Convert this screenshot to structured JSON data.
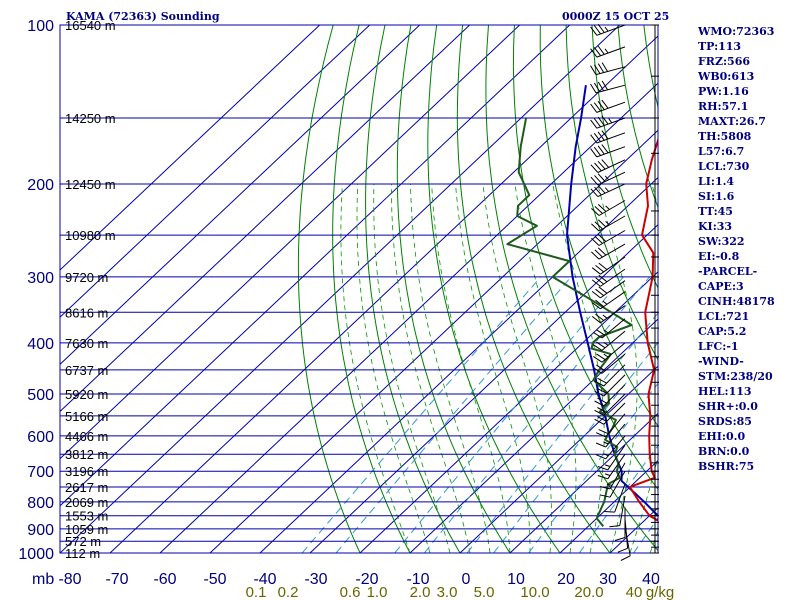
{
  "chart_data": {
    "type": "skew-t sounding",
    "title": "KAMA (72363) Sounding",
    "datetime": "0000Z 15 OCT 25",
    "pressure_unit": "mb",
    "mixing_ratio_unit": "g/kg",
    "pressure_ticks": [
      100,
      200,
      300,
      400,
      500,
      600,
      700,
      800,
      900,
      1000
    ],
    "temperature_ticks": [
      -80,
      -70,
      -60,
      -50,
      -40,
      -30,
      -20,
      -10,
      0,
      10,
      20,
      30,
      40
    ],
    "temperature_tick_labels": [
      "-80",
      "-70",
      "-60",
      "-50",
      "-40",
      "-30",
      "-20",
      "-10",
      "0",
      "10",
      "20",
      "30",
      "40"
    ],
    "mixing_ratio_labels": [
      "0.1",
      "0.2",
      "0.6",
      "1.0",
      "2.0",
      "3.0",
      "5.0",
      "10.0",
      "20.0",
      "40"
    ],
    "mixing_ratio_values": [
      0.1,
      0.2,
      0.6,
      1.0,
      2.0,
      3.0,
      5.0,
      10.0,
      20.0,
      40.0
    ],
    "height_labels": [
      {
        "p": 100,
        "label": "16540 m"
      },
      {
        "p": 150,
        "label": "14250 m"
      },
      {
        "p": 200,
        "label": "12450 m"
      },
      {
        "p": 250,
        "label": "10980 m"
      },
      {
        "p": 300,
        "label": "9720 m"
      },
      {
        "p": 350,
        "label": "8616 m"
      },
      {
        "p": 400,
        "label": "7630 m"
      },
      {
        "p": 450,
        "label": "6737 m"
      },
      {
        "p": 500,
        "label": "5920 m"
      },
      {
        "p": 550,
        "label": "5166 m"
      },
      {
        "p": 600,
        "label": "4466 m"
      },
      {
        "p": 650,
        "label": "3812 m"
      },
      {
        "p": 700,
        "label": "3196 m"
      },
      {
        "p": 750,
        "label": "2617 m"
      },
      {
        "p": 800,
        "label": "2069 m"
      },
      {
        "p": 850,
        "label": "1553 m"
      },
      {
        "p": 900,
        "label": "1059 m"
      },
      {
        "p": 950,
        "label": "572 m"
      },
      {
        "p": 1000,
        "label": "112 m"
      }
    ],
    "temperature_profile": [
      [
        890,
        26
      ],
      [
        850,
        20
      ],
      [
        800,
        15
      ],
      [
        750,
        10
      ],
      [
        720,
        13
      ],
      [
        700,
        11
      ],
      [
        650,
        7
      ],
      [
        600,
        3
      ],
      [
        550,
        -1
      ],
      [
        500,
        -6
      ],
      [
        450,
        -10
      ],
      [
        400,
        -17
      ],
      [
        350,
        -24
      ],
      [
        300,
        -30
      ],
      [
        270,
        -35
      ],
      [
        250,
        -41
      ],
      [
        220,
        -46
      ],
      [
        200,
        -51
      ],
      [
        180,
        -55
      ],
      [
        160,
        -59
      ],
      [
        150,
        -61
      ],
      [
        130,
        -65
      ],
      [
        120,
        -68
      ],
      [
        110,
        -71
      ],
      [
        102,
        -74
      ]
    ],
    "dewpoint_profile": [
      [
        890,
        13
      ],
      [
        860,
        10
      ],
      [
        830,
        9
      ],
      [
        800,
        8
      ],
      [
        760,
        6
      ],
      [
        740,
        5
      ],
      [
        720,
        6
      ],
      [
        700,
        4
      ],
      [
        680,
        3
      ],
      [
        650,
        0
      ],
      [
        630,
        -1
      ],
      [
        610,
        -5
      ],
      [
        580,
        -6
      ],
      [
        560,
        -7
      ],
      [
        540,
        -12
      ],
      [
        520,
        -12
      ],
      [
        500,
        -14
      ],
      [
        470,
        -20
      ],
      [
        450,
        -21
      ],
      [
        420,
        -22
      ],
      [
        410,
        -27
      ],
      [
        400,
        -28
      ],
      [
        390,
        -28
      ],
      [
        370,
        -24
      ],
      [
        330,
        -38
      ],
      [
        300,
        -50
      ],
      [
        280,
        -50
      ],
      [
        260,
        -66
      ],
      [
        240,
        -64
      ],
      [
        230,
        -70
      ],
      [
        220,
        -72
      ],
      [
        210,
        -72
      ],
      [
        190,
        -79
      ],
      [
        170,
        -84
      ],
      [
        150,
        -89
      ]
    ],
    "parcel_profile": [
      [
        890,
        26
      ],
      [
        800,
        16
      ],
      [
        730,
        7
      ],
      [
        700,
        5
      ],
      [
        650,
        0
      ],
      [
        600,
        -5
      ],
      [
        550,
        -10
      ],
      [
        500,
        -16
      ],
      [
        450,
        -22
      ],
      [
        400,
        -29
      ],
      [
        350,
        -37
      ],
      [
        300,
        -46
      ],
      [
        250,
        -56
      ],
      [
        200,
        -66
      ],
      [
        170,
        -73
      ],
      [
        150,
        -78
      ],
      [
        130,
        -84
      ]
    ],
    "indices": [
      "WMO:72363",
      "TP:113",
      "FRZ:566",
      "WB0:613",
      "PW:1.16",
      "RH:57.1",
      "MAXT:26.7",
      "TH:5808",
      "L57:6.7",
      "LCL:730",
      "LI:1.4",
      "SI:1.6",
      "TT:45",
      "KI:33",
      "SW:322",
      "EI:-0.8",
      "-PARCEL-",
      "CAPE:3",
      "CINH:48178",
      "LCL:721",
      "CAP:5.2",
      "LFC:-1",
      "-WIND-",
      "STM:238/20",
      "HEL:113",
      "SHR+:0.0",
      "SRDS:85",
      "EHI:0.0",
      "BRN:0.0",
      "BSHR:75"
    ],
    "wind_profile": [
      [
        100,
        250,
        35
      ],
      [
        110,
        250,
        35
      ],
      [
        120,
        255,
        40
      ],
      [
        130,
        255,
        40
      ],
      [
        140,
        250,
        40
      ],
      [
        150,
        250,
        45
      ],
      [
        160,
        250,
        40
      ],
      [
        170,
        250,
        40
      ],
      [
        180,
        245,
        40
      ],
      [
        190,
        245,
        35
      ],
      [
        200,
        245,
        35
      ],
      [
        215,
        240,
        35
      ],
      [
        230,
        240,
        35
      ],
      [
        245,
        240,
        30
      ],
      [
        260,
        240,
        30
      ],
      [
        275,
        235,
        30
      ],
      [
        290,
        235,
        30
      ],
      [
        305,
        235,
        30
      ],
      [
        320,
        235,
        25
      ],
      [
        340,
        235,
        25
      ],
      [
        360,
        230,
        25
      ],
      [
        380,
        230,
        25
      ],
      [
        400,
        230,
        25
      ],
      [
        420,
        230,
        20
      ],
      [
        440,
        225,
        20
      ],
      [
        460,
        225,
        20
      ],
      [
        480,
        225,
        20
      ],
      [
        500,
        225,
        20
      ],
      [
        520,
        225,
        20
      ],
      [
        545,
        220,
        20
      ],
      [
        570,
        220,
        15
      ],
      [
        600,
        220,
        15
      ],
      [
        625,
        215,
        15
      ],
      [
        650,
        215,
        15
      ],
      [
        675,
        210,
        15
      ],
      [
        700,
        210,
        10
      ],
      [
        740,
        200,
        10
      ],
      [
        780,
        190,
        10
      ],
      [
        820,
        180,
        10
      ],
      [
        860,
        175,
        10
      ],
      [
        890,
        170,
        10
      ]
    ],
    "colors": {
      "temperature": "#cc0000",
      "dewpoint": "#1e5a1e",
      "parcel": "#0000aa",
      "isobar": "#0000aa",
      "isotherm": "#0000aa",
      "dry_adiabat": "#008000",
      "moist_adiabat": "#009900",
      "mixing_ratio": "#3399cc",
      "axis_label": "#000080",
      "mixing_ratio_label": "#666600",
      "height_label": "#000000",
      "wind": "#000000"
    }
  }
}
